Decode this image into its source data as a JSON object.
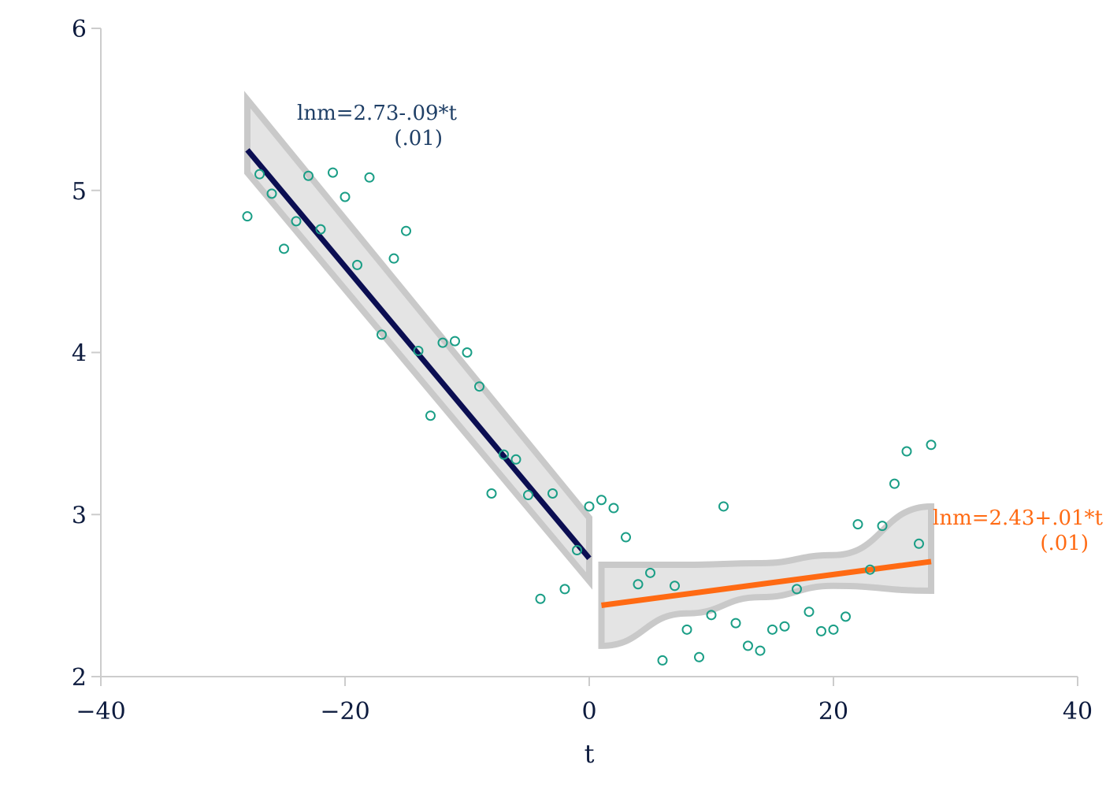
{
  "chart_data": {
    "type": "scatter",
    "xlabel": "t",
    "ylabel": "",
    "xlim": [
      -40,
      40
    ],
    "ylim": [
      2,
      6
    ],
    "xticks": [
      -40,
      -20,
      0,
      20,
      40
    ],
    "yticks": [
      2,
      3,
      4,
      5,
      6
    ],
    "grid": false,
    "colors": {
      "points": "#1a9e86",
      "fit_left": "#0b0e52",
      "fit_right": "#ff6a13",
      "band": "#c9c9c9",
      "band_fill": "#e4e4e4",
      "axis": "#cccccc",
      "annot_left": "#1f3f66",
      "annot_right": "#ff6a13"
    },
    "points": [
      [
        -28,
        4.84
      ],
      [
        -27,
        5.1
      ],
      [
        -26,
        4.98
      ],
      [
        -25,
        4.64
      ],
      [
        -24,
        4.81
      ],
      [
        -23,
        5.09
      ],
      [
        -22,
        4.76
      ],
      [
        -21,
        5.11
      ],
      [
        -20,
        4.96
      ],
      [
        -19,
        4.54
      ],
      [
        -18,
        5.08
      ],
      [
        -17,
        4.11
      ],
      [
        -16,
        4.58
      ],
      [
        -15,
        4.75
      ],
      [
        -14,
        4.01
      ],
      [
        -13,
        3.61
      ],
      [
        -12,
        4.06
      ],
      [
        -11,
        4.07
      ],
      [
        -10,
        4.0
      ],
      [
        -9,
        3.79
      ],
      [
        -8,
        3.13
      ],
      [
        -7,
        3.37
      ],
      [
        -6,
        3.34
      ],
      [
        -5,
        3.12
      ],
      [
        -4,
        2.48
      ],
      [
        -3,
        3.13
      ],
      [
        -2,
        2.54
      ],
      [
        -1,
        2.78
      ],
      [
        0,
        3.05
      ],
      [
        1,
        3.09
      ],
      [
        2,
        3.04
      ],
      [
        3,
        2.86
      ],
      [
        4,
        2.57
      ],
      [
        5,
        2.64
      ],
      [
        6,
        2.1
      ],
      [
        7,
        2.56
      ],
      [
        8,
        2.29
      ],
      [
        9,
        2.12
      ],
      [
        10,
        2.38
      ],
      [
        11,
        3.05
      ],
      [
        12,
        2.33
      ],
      [
        13,
        2.19
      ],
      [
        14,
        2.16
      ],
      [
        15,
        2.29
      ],
      [
        16,
        2.31
      ],
      [
        17,
        2.54
      ],
      [
        18,
        2.4
      ],
      [
        19,
        2.28
      ],
      [
        20,
        2.29
      ],
      [
        21,
        2.37
      ],
      [
        22,
        2.94
      ],
      [
        23,
        2.66
      ],
      [
        24,
        2.93
      ],
      [
        25,
        3.19
      ],
      [
        26,
        3.39
      ],
      [
        27,
        2.82
      ],
      [
        28,
        3.43
      ]
    ],
    "fits": [
      {
        "segment": "left",
        "intercept": 2.73,
        "slope": -0.09,
        "x_range": [
          -28,
          0
        ],
        "band": [
          {
            "x": -28,
            "lo": 5.11,
            "hi": 5.56
          },
          {
            "x": 0,
            "lo": 2.59,
            "hi": 2.98
          }
        ],
        "equation": "lnm=2.73-.09*t",
        "se": "(.01)"
      },
      {
        "segment": "right",
        "intercept": 2.43,
        "slope": 0.01,
        "x_range": [
          1,
          28
        ],
        "band": [
          {
            "x": 1,
            "lo": 2.19,
            "hi": 2.69
          },
          {
            "x": 8,
            "lo": 2.39,
            "hi": 2.69
          },
          {
            "x": 14,
            "lo": 2.49,
            "hi": 2.7
          },
          {
            "x": 20,
            "lo": 2.56,
            "hi": 2.75
          },
          {
            "x": 28,
            "lo": 2.53,
            "hi": 3.05
          }
        ],
        "equation": "lnm=2.43+.01*t",
        "se": "(.01)"
      }
    ]
  }
}
